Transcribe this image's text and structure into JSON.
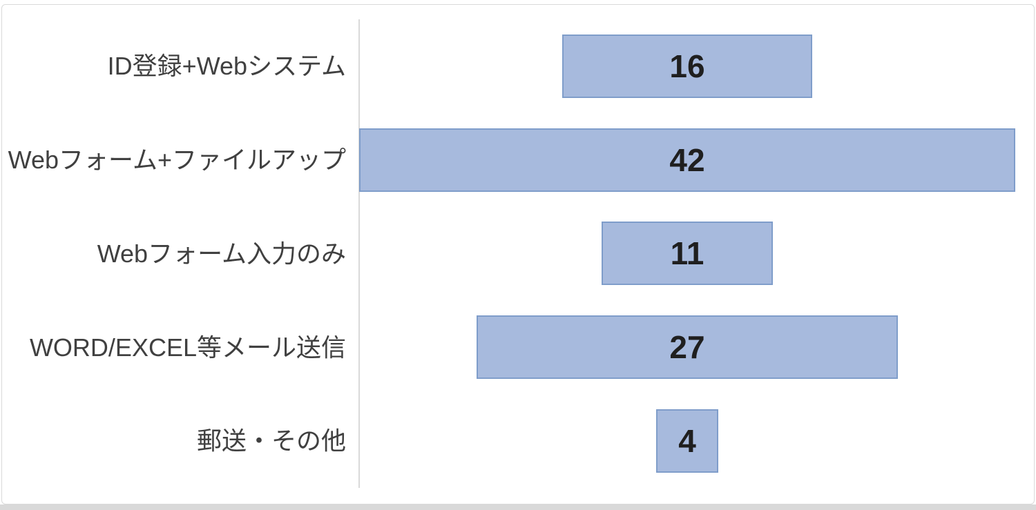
{
  "chart_data": {
    "type": "bar",
    "orientation": "horizontal-centered-funnel",
    "title": "",
    "xlabel": "",
    "ylabel": "",
    "categories": [
      "ID登録+Webシステム",
      "Webフォーム+ファイルアップ",
      "Webフォーム入力のみ",
      "WORD/EXCEL等メール送信",
      "郵送・その他"
    ],
    "values": [
      16,
      42,
      11,
      27,
      4
    ],
    "xlim": [
      0,
      42
    ],
    "grid": false,
    "legend": false,
    "colors": {
      "bar_fill": "#A7BADD",
      "bar_border": "#7F9DCA",
      "axis_line": "#D9D9D9",
      "frame_border": "#D9D9D9",
      "label_text": "#404040",
      "value_text": "#1F1F1F",
      "background": "#FFFFFF"
    }
  }
}
